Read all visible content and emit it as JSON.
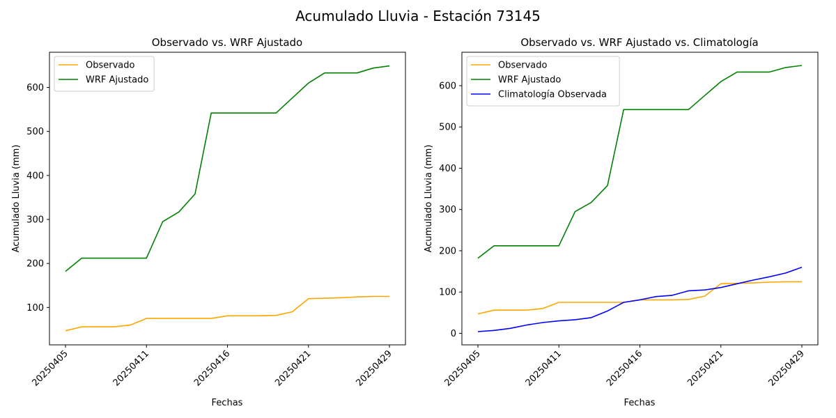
{
  "figure": {
    "suptitle": "Acumulado Lluvia - Estación 73145"
  },
  "colors": {
    "observado": "#ffa500",
    "wrf": "#008000",
    "climatologia": "#0000ff"
  },
  "chart_data": [
    {
      "type": "line",
      "title": "Observado vs. WRF Ajustado",
      "xlabel": "Fechas",
      "ylabel": "Acumulado Lluvia (mm)",
      "x_tick_labels": [
        "20250405",
        "20250411",
        "20250416",
        "20250421",
        "20250429"
      ],
      "x_tick_index": [
        0,
        5,
        10,
        15,
        20
      ],
      "y_ticks": [
        100,
        200,
        300,
        400,
        500,
        600
      ],
      "ylim": [
        15,
        680
      ],
      "legend_position": "top-left",
      "series": [
        {
          "name": "Observado",
          "color": "#ffa500",
          "values": [
            47,
            56,
            56,
            56,
            60,
            75,
            75,
            75,
            75,
            75,
            81,
            81,
            81,
            82,
            90,
            120,
            121,
            122,
            124,
            125,
            125
          ]
        },
        {
          "name": "WRF Ajustado",
          "color": "#008000",
          "values": [
            182,
            212,
            212,
            212,
            212,
            212,
            295,
            317,
            358,
            542,
            542,
            542,
            542,
            542,
            576,
            610,
            633,
            633,
            633,
            644,
            649
          ]
        }
      ]
    },
    {
      "type": "line",
      "title": "Observado vs. WRF Ajustado vs. Climatología",
      "xlabel": "Fechas",
      "ylabel": "Acumulado Lluvia (mm)",
      "x_tick_labels": [
        "20250405",
        "20250411",
        "20250416",
        "20250421",
        "20250429"
      ],
      "x_tick_index": [
        0,
        5,
        10,
        15,
        20
      ],
      "y_ticks": [
        0,
        100,
        200,
        300,
        400,
        500,
        600
      ],
      "ylim": [
        -28,
        681
      ],
      "legend_position": "top-left",
      "series": [
        {
          "name": "Observado",
          "color": "#ffa500",
          "values": [
            47,
            56,
            56,
            56,
            60,
            75,
            75,
            75,
            75,
            75,
            81,
            81,
            81,
            82,
            90,
            120,
            121,
            122,
            124,
            125,
            125
          ]
        },
        {
          "name": "WRF Ajustado",
          "color": "#008000",
          "values": [
            182,
            212,
            212,
            212,
            212,
            212,
            295,
            317,
            358,
            542,
            542,
            542,
            542,
            542,
            576,
            610,
            633,
            633,
            633,
            644,
            649
          ]
        },
        {
          "name": "Climatología Observada",
          "color": "#0000ff",
          "values": [
            4,
            7,
            12,
            20,
            26,
            30,
            33,
            38,
            54,
            75,
            81,
            89,
            92,
            103,
            105,
            111,
            120,
            129,
            137,
            146,
            160
          ]
        }
      ]
    }
  ]
}
